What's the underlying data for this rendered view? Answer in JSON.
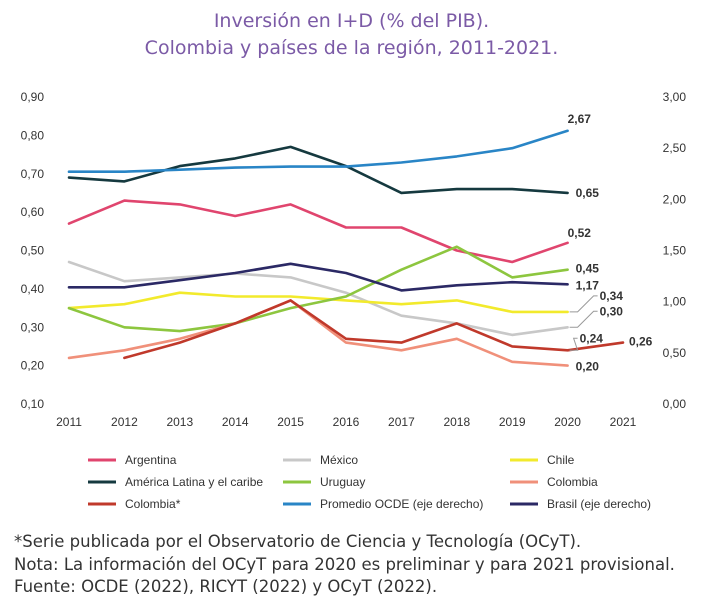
{
  "title": {
    "line1": "Inversión en I+D (% del PIB).",
    "line2": "Colombia y países de la región, 2011-2021."
  },
  "notes": [
    "*Serie publicada por el Observatorio de Ciencia y Tecnología (OCyT).",
    "Nota: La información del OCyT para 2020 es preliminar y para 2021 provisional.",
    "Fuente: OCDE (2022), RICYT (2022) y OCyT (2022)."
  ],
  "chart_data": {
    "type": "line",
    "x": [
      "2011",
      "2012",
      "2013",
      "2014",
      "2015",
      "2016",
      "2017",
      "2018",
      "2019",
      "2020",
      "2021"
    ],
    "y_left": {
      "range": [
        0.1,
        0.9
      ],
      "ticks": [
        "0,10",
        "0,20",
        "0,30",
        "0,40",
        "0,50",
        "0,60",
        "0,70",
        "0,80",
        "0,90"
      ],
      "tick_values": [
        0.1,
        0.2,
        0.3,
        0.4,
        0.5,
        0.6,
        0.7,
        0.8,
        0.9
      ]
    },
    "y_right": {
      "range": [
        0.0,
        3.0
      ],
      "ticks": [
        "0,00",
        "0,50",
        "1,00",
        "1,50",
        "2,00",
        "2,50",
        "3,00"
      ],
      "tick_values": [
        0.0,
        0.5,
        1.0,
        1.5,
        2.0,
        2.5,
        3.0
      ]
    },
    "grid": false,
    "legend_position": "bottom",
    "series": [
      {
        "name": "Argentina",
        "color": "#e0456e",
        "axis": "left",
        "values": [
          0.57,
          0.63,
          0.62,
          0.59,
          0.62,
          0.56,
          0.56,
          0.5,
          0.47,
          0.52,
          null
        ],
        "end_label": "0,52",
        "end_index": 9
      },
      {
        "name": "México",
        "color": "#c8c8c8",
        "axis": "left",
        "values": [
          0.47,
          0.42,
          0.43,
          0.44,
          0.43,
          0.39,
          0.33,
          0.31,
          0.28,
          0.3,
          null
        ],
        "end_label": "0,30",
        "end_index": 9
      },
      {
        "name": "Chile",
        "color": "#f2ea2c",
        "axis": "left",
        "values": [
          0.35,
          0.36,
          0.39,
          0.38,
          0.38,
          0.37,
          0.36,
          0.37,
          0.34,
          0.34,
          null
        ],
        "end_label": "0,34",
        "end_index": 9
      },
      {
        "name": "América Latina y el caribe",
        "color": "#15393f",
        "axis": "left",
        "values": [
          0.69,
          0.68,
          0.72,
          0.74,
          0.77,
          0.72,
          0.65,
          0.66,
          0.66,
          0.65,
          null
        ],
        "end_label": "0,65",
        "end_index": 9
      },
      {
        "name": "Uruguay",
        "color": "#8dc63f",
        "axis": "left",
        "values": [
          0.35,
          0.3,
          0.29,
          0.31,
          0.35,
          0.38,
          0.45,
          0.51,
          0.43,
          0.45,
          null
        ],
        "end_label": "0,45",
        "end_index": 9
      },
      {
        "name": "Colombia",
        "color": "#f0907a",
        "axis": "left",
        "values": [
          0.22,
          0.24,
          0.27,
          0.31,
          0.37,
          0.26,
          0.24,
          0.27,
          0.21,
          0.2,
          null
        ],
        "end_label": "0,20",
        "end_index": 9
      },
      {
        "name": "Colombia*",
        "color": "#c0392b",
        "axis": "left",
        "values": [
          null,
          0.22,
          0.26,
          0.31,
          0.37,
          0.27,
          0.26,
          0.31,
          0.25,
          0.24,
          0.26
        ],
        "end_label": "0,24",
        "end_index": 9,
        "extra_label": "0,26",
        "extra_index": 10
      },
      {
        "name": "Promedio OCDE (eje derecho)",
        "color": "#2985c6",
        "axis": "right",
        "values": [
          2.27,
          2.27,
          2.29,
          2.31,
          2.32,
          2.32,
          2.36,
          2.42,
          2.5,
          2.67,
          null
        ],
        "end_label": "2,67",
        "end_index": 9
      },
      {
        "name": "Brasil (eje derecho)",
        "color": "#2b2965",
        "axis": "right",
        "values": [
          1.14,
          1.14,
          1.21,
          1.28,
          1.37,
          1.28,
          1.11,
          1.16,
          1.19,
          1.17,
          null
        ],
        "end_label": "1,17",
        "end_index": 9
      }
    ],
    "legend": [
      [
        "Argentina",
        "México",
        "Chile"
      ],
      [
        "América Latina y el caribe",
        "Uruguay",
        "Colombia"
      ],
      [
        "Colombia*",
        "Promedio OCDE (eje derecho)",
        "Brasil (eje derecho)"
      ]
    ]
  }
}
